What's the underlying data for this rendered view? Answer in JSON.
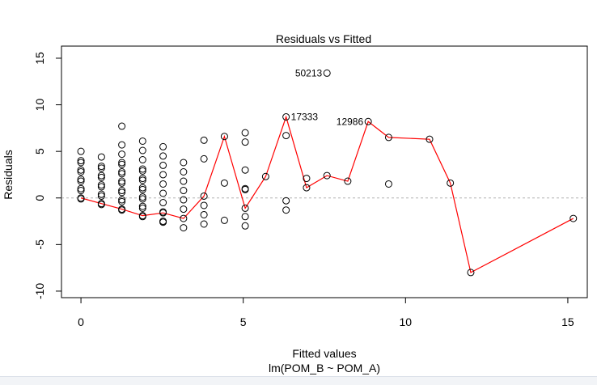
{
  "chart_data": {
    "type": "scatter",
    "title": "Residuals vs Fitted",
    "xlabel": "Fitted values",
    "sublabel": "lm(POM_B ~ POM_A)",
    "ylabel": "Residuals",
    "xlim": [
      -0.6,
      15.6
    ],
    "ylim": [
      -10.7,
      16.3
    ],
    "xticks": [
      0,
      5,
      10,
      15
    ],
    "yticks": [
      -10,
      -5,
      0,
      5,
      10,
      15
    ],
    "reference_line": 0,
    "points": [
      [
        0,
        5.0
      ],
      [
        0,
        4.0
      ],
      [
        0,
        3.8
      ],
      [
        0,
        3.0
      ],
      [
        0,
        2.8
      ],
      [
        0,
        2.0
      ],
      [
        0,
        1.8
      ],
      [
        0,
        1.0
      ],
      [
        0,
        0.8
      ],
      [
        0,
        0.0
      ],
      [
        0,
        -0.1
      ],
      [
        0.63,
        4.4
      ],
      [
        0.63,
        3.4
      ],
      [
        0.63,
        3.2
      ],
      [
        0.63,
        2.4
      ],
      [
        0.63,
        2.2
      ],
      [
        0.63,
        1.4
      ],
      [
        0.63,
        1.2
      ],
      [
        0.63,
        0.4
      ],
      [
        0.63,
        0.2
      ],
      [
        0.63,
        -0.6
      ],
      [
        0.63,
        -0.7
      ],
      [
        1.26,
        7.7
      ],
      [
        1.26,
        5.7
      ],
      [
        1.26,
        4.7
      ],
      [
        1.26,
        3.8
      ],
      [
        1.26,
        3.6
      ],
      [
        1.26,
        2.8
      ],
      [
        1.26,
        2.6
      ],
      [
        1.26,
        1.8
      ],
      [
        1.26,
        1.6
      ],
      [
        1.26,
        0.8
      ],
      [
        1.26,
        0.6
      ],
      [
        1.26,
        -0.2
      ],
      [
        1.26,
        -0.4
      ],
      [
        1.26,
        -1.2
      ],
      [
        1.26,
        -1.3
      ],
      [
        1.9,
        6.1
      ],
      [
        1.9,
        5.1
      ],
      [
        1.9,
        4.1
      ],
      [
        1.9,
        3.1
      ],
      [
        1.9,
        2.9
      ],
      [
        1.9,
        2.1
      ],
      [
        1.9,
        1.9
      ],
      [
        1.9,
        1.1
      ],
      [
        1.9,
        0.9
      ],
      [
        1.9,
        0.1
      ],
      [
        1.9,
        -0.1
      ],
      [
        1.9,
        -0.9
      ],
      [
        1.9,
        -1.1
      ],
      [
        1.9,
        -1.9
      ],
      [
        1.9,
        -2.0
      ],
      [
        2.53,
        5.5
      ],
      [
        2.53,
        4.5
      ],
      [
        2.53,
        3.5
      ],
      [
        2.53,
        2.5
      ],
      [
        2.53,
        1.5
      ],
      [
        2.53,
        0.5
      ],
      [
        2.53,
        -0.5
      ],
      [
        2.53,
        -1.5
      ],
      [
        2.53,
        -1.6
      ],
      [
        2.53,
        -2.5
      ],
      [
        2.53,
        -2.6
      ],
      [
        3.16,
        3.8
      ],
      [
        3.16,
        2.8
      ],
      [
        3.16,
        1.8
      ],
      [
        3.16,
        0.8
      ],
      [
        3.16,
        -0.2
      ],
      [
        3.16,
        -1.2
      ],
      [
        3.16,
        -2.2
      ],
      [
        3.16,
        -3.2
      ],
      [
        3.79,
        6.2
      ],
      [
        3.79,
        4.2
      ],
      [
        3.79,
        0.2
      ],
      [
        3.79,
        -0.8
      ],
      [
        3.79,
        -1.8
      ],
      [
        3.79,
        -2.8
      ],
      [
        4.42,
        6.6
      ],
      [
        4.42,
        1.6
      ],
      [
        4.42,
        -2.4
      ],
      [
        5.06,
        7.0
      ],
      [
        5.06,
        6.0
      ],
      [
        5.06,
        3.0
      ],
      [
        5.06,
        1.0
      ],
      [
        5.06,
        0.9
      ],
      [
        5.06,
        -1.1
      ],
      [
        5.06,
        -2.0
      ],
      [
        5.06,
        -3.0
      ],
      [
        5.69,
        2.3
      ],
      [
        6.32,
        8.7
      ],
      [
        6.32,
        6.7
      ],
      [
        6.32,
        -0.3
      ],
      [
        6.32,
        -1.3
      ],
      [
        6.95,
        2.1
      ],
      [
        6.95,
        1.1
      ],
      [
        7.58,
        13.4
      ],
      [
        7.58,
        2.4
      ],
      [
        8.22,
        1.8
      ],
      [
        8.85,
        8.2
      ],
      [
        9.48,
        6.5
      ],
      [
        9.48,
        1.5
      ],
      [
        10.74,
        6.3
      ],
      [
        11.38,
        1.6
      ],
      [
        12.01,
        -8.0
      ],
      [
        15.17,
        -2.2
      ]
    ],
    "smooth_line": [
      [
        0,
        0.0
      ],
      [
        0.63,
        -0.6
      ],
      [
        1.26,
        -1.2
      ],
      [
        1.9,
        -1.9
      ],
      [
        2.53,
        -1.6
      ],
      [
        3.16,
        -2.2
      ],
      [
        3.79,
        0.2
      ],
      [
        4.42,
        6.6
      ],
      [
        5.06,
        -1.1
      ],
      [
        5.69,
        2.3
      ],
      [
        6.32,
        8.7
      ],
      [
        6.95,
        1.1
      ],
      [
        7.58,
        2.4
      ],
      [
        8.22,
        1.8
      ],
      [
        8.85,
        8.2
      ],
      [
        9.48,
        6.5
      ],
      [
        10.74,
        6.3
      ],
      [
        11.38,
        1.6
      ],
      [
        12.01,
        -8.0
      ],
      [
        15.17,
        -2.2
      ]
    ],
    "annotations": [
      {
        "label": "50213",
        "x": 7.58,
        "y": 13.4,
        "side": "left"
      },
      {
        "label": "17333",
        "x": 6.32,
        "y": 8.7,
        "side": "right"
      },
      {
        "label": "12986",
        "x": 8.85,
        "y": 8.2,
        "side": "left"
      }
    ],
    "colors": {
      "points": "#000000",
      "smooth": "#ff0000",
      "reference": "#b0b0b0"
    }
  }
}
